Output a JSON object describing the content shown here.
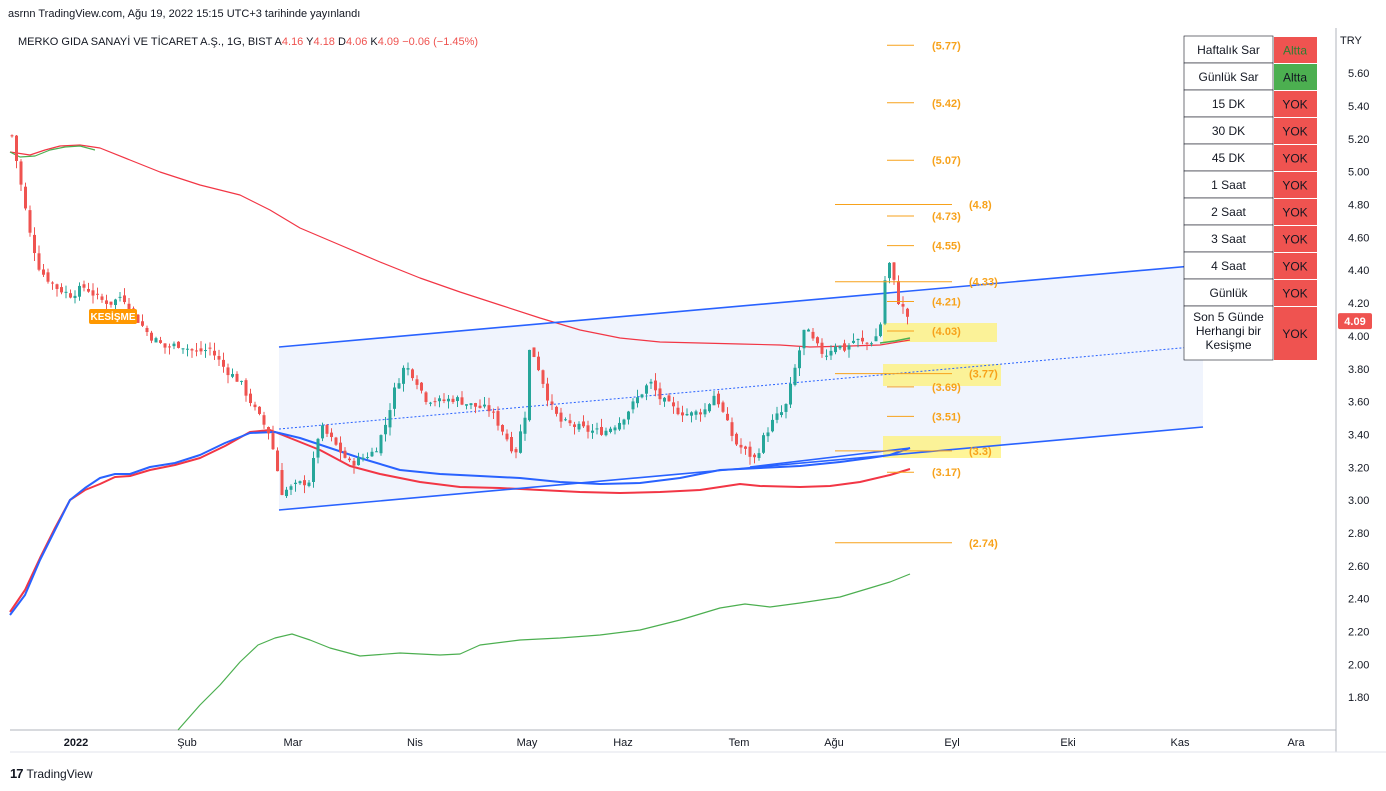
{
  "header": {
    "published_line": "asrnn TradingView.com, Ağu 19, 2022 15:15 UTC+3 tarihinde yayınlandı",
    "symbol_line": "MERKO GIDA SANAYİ VE TİCARET A.Ş., 1G, BIST",
    "ohlc": [
      {
        "key": "A",
        "value": "4.16"
      },
      {
        "key": "Y",
        "value": "4.18"
      },
      {
        "key": "D",
        "value": "4.06"
      },
      {
        "key": "K",
        "value": "4.09"
      }
    ],
    "change": "−0.06 (−1.45%)"
  },
  "colors": {
    "up": "#26a69a",
    "down": "#ef5350",
    "blue": "#2962ff",
    "red_ma": "#f23645",
    "green_ma": "#4caf50",
    "fib": "#f7a21b",
    "channel_fill": "#eef3fd",
    "highlight": "#fff176"
  },
  "chart_data": {
    "type": "candlestick",
    "currency": "TRY",
    "y_ticks": [
      "5.60",
      "5.40",
      "5.20",
      "5.00",
      "4.80",
      "4.60",
      "4.40",
      "4.20",
      "4.00",
      "3.80",
      "3.60",
      "3.40",
      "3.20",
      "3.00",
      "2.80",
      "2.60",
      "2.40",
      "2.20",
      "2.00",
      "1.80"
    ],
    "x_ticks": [
      "2022",
      "Şub",
      "Mar",
      "Nis",
      "May",
      "Haz",
      "Tem",
      "Ağu",
      "Eyl",
      "Eki",
      "Kas",
      "Ara"
    ],
    "ylim": [
      1.6,
      5.82
    ],
    "last_price": "4.09",
    "levels": [
      {
        "label": "(5.77)",
        "value": 5.77
      },
      {
        "label": "(5.42)",
        "value": 5.42
      },
      {
        "label": "(5.07)",
        "value": 5.07
      },
      {
        "label": "(4.8)",
        "value": 4.8
      },
      {
        "label": "(4.73)",
        "value": 4.73
      },
      {
        "label": "(4.55)",
        "value": 4.55
      },
      {
        "label": "(4.33)",
        "value": 4.33
      },
      {
        "label": "(4.21)",
        "value": 4.21
      },
      {
        "label": "(4.03)",
        "value": 4.03
      },
      {
        "label": "(3.77)",
        "value": 3.77
      },
      {
        "label": "(3.69)",
        "value": 3.69
      },
      {
        "label": "(3.51)",
        "value": 3.51
      },
      {
        "label": "(3.3)",
        "value": 3.3
      },
      {
        "label": "(3.17)",
        "value": 3.17
      },
      {
        "label": "(2.74)",
        "value": 2.74
      }
    ],
    "annotation": "KESİŞME"
  },
  "signal_table": [
    {
      "label": "Haftalık Sar",
      "value": "Altta",
      "status": "green-on-red"
    },
    {
      "label": "Günlük Sar",
      "value": "Altta",
      "status": "green"
    },
    {
      "label": "15 DK",
      "value": "YOK",
      "status": "red"
    },
    {
      "label": "30 DK",
      "value": "YOK",
      "status": "red"
    },
    {
      "label": "45 DK",
      "value": "YOK",
      "status": "red"
    },
    {
      "label": "1 Saat",
      "value": "YOK",
      "status": "red"
    },
    {
      "label": "2 Saat",
      "value": "YOK",
      "status": "red"
    },
    {
      "label": "3 Saat",
      "value": "YOK",
      "status": "red"
    },
    {
      "label": "4 Saat",
      "value": "YOK",
      "status": "red"
    },
    {
      "label": "Günlük",
      "value": "YOK",
      "status": "red"
    },
    {
      "label": "Son 5 Günde Herhangi bir Kesişme",
      "value": "YOK",
      "status": "red"
    }
  ],
  "footer": {
    "brand": "TradingView"
  }
}
